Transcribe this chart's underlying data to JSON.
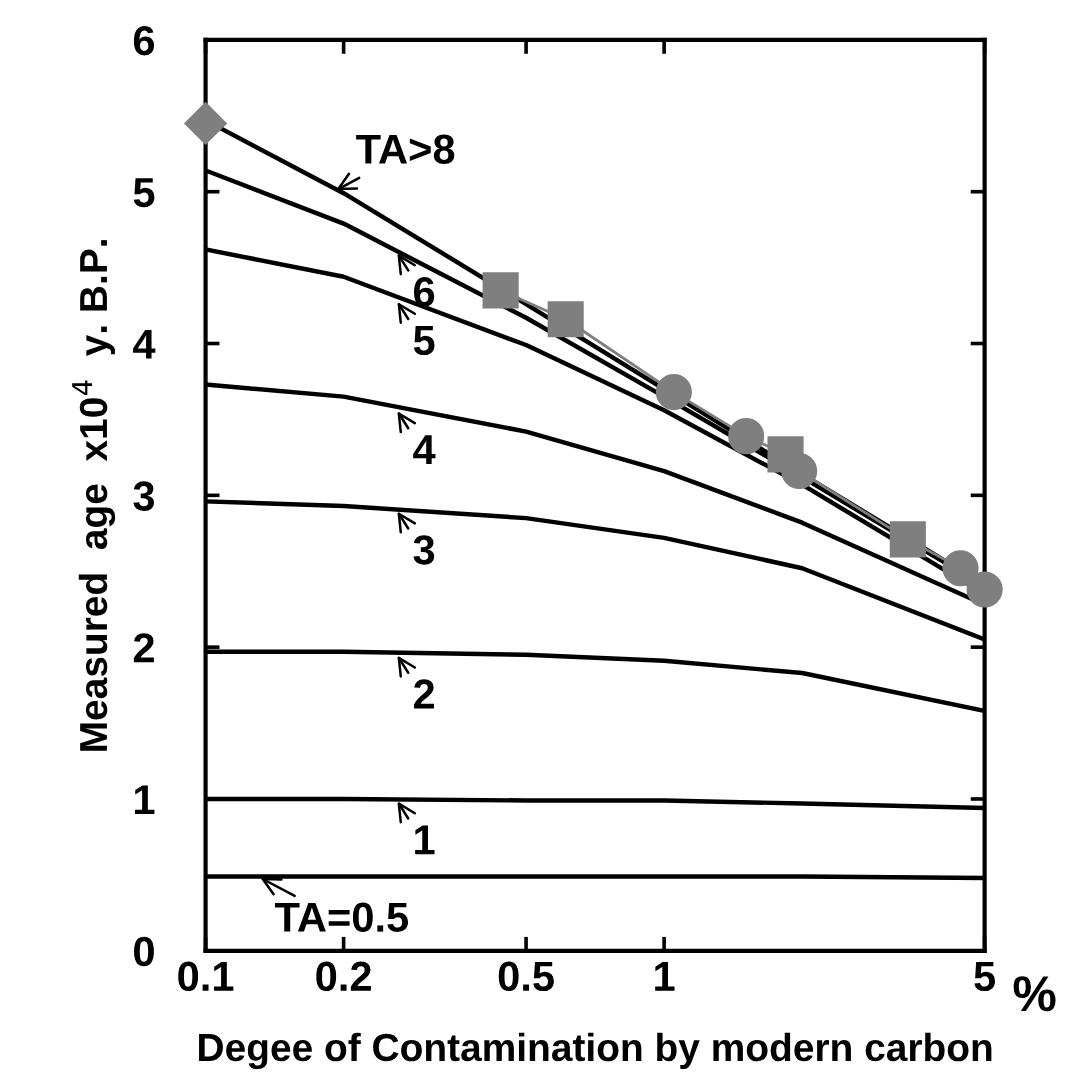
{
  "chart_data": {
    "type": "line",
    "xlabel": "Degee of Contamination by modern carbon",
    "ylabel": "Measured  age  x10$^{4}$  y. B.P.",
    "log": "x",
    "xlim": [
      0.1,
      5
    ],
    "xticks": [
      0.1,
      0.2,
      0.5,
      1,
      5
    ],
    "ylim": [
      0,
      6
    ],
    "yticks": [
      0,
      1,
      2,
      3,
      4,
      5,
      6
    ],
    "grid": false,
    "legend": false,
    "x": [
      0.1,
      0.2,
      0.5,
      1,
      2,
      5
    ],
    "series": [
      {
        "color": "#000000",
        "marker": "none",
        "values": [
          5.47,
          4.99,
          4.26,
          3.7,
          3.14,
          2.41
        ]
      },
      {
        "color": "#000000",
        "marker": "none",
        "values": [
          5.14,
          4.79,
          4.17,
          3.65,
          3.12,
          2.4
        ]
      },
      {
        "color": "#000000",
        "marker": "none",
        "values": [
          4.62,
          4.44,
          3.99,
          3.56,
          3.07,
          2.35
        ]
      },
      {
        "color": "#000000",
        "marker": "none",
        "values": [
          3.73,
          3.65,
          3.42,
          3.16,
          2.82,
          2.28
        ]
      },
      {
        "color": "#000000",
        "marker": "none",
        "values": [
          2.96,
          2.93,
          2.85,
          2.72,
          2.52,
          2.05
        ]
      },
      {
        "color": "#000000",
        "marker": "none",
        "values": [
          1.97,
          1.97,
          1.95,
          1.91,
          1.83,
          1.58
        ]
      },
      {
        "color": "#000000",
        "marker": "none",
        "values": [
          1.0,
          1.0,
          0.99,
          0.99,
          0.97,
          0.94
        ]
      },
      {
        "color": "#000000",
        "marker": "none",
        "values": [
          0.49,
          0.49,
          0.49,
          0.49,
          0.49,
          0.48
        ]
      },
      {
        "color": "#7f7f7f",
        "marker": "none",
        "x": [
          0.44,
          0.61,
          1.05,
          1.51,
          1.84,
          1.97,
          3.4,
          4.43,
          5.0
        ],
        "values": [
          4.35,
          4.16,
          3.68,
          3.39,
          3.27,
          3.16,
          2.71,
          2.52,
          2.38
        ]
      },
      {
        "type": "scatter",
        "color": "#7f7f7f",
        "marker": "diamond",
        "x": [
          0.1
        ],
        "values": [
          5.45
        ]
      },
      {
        "type": "scatter",
        "color": "#7f7f7f",
        "marker": "square",
        "x": [
          0.44,
          0.61,
          1.84,
          3.4
        ],
        "values": [
          4.35,
          4.16,
          3.27,
          2.71
        ]
      },
      {
        "type": "scatter",
        "color": "#7f7f7f",
        "marker": "circle",
        "x": [
          1.05,
          1.51,
          1.97,
          4.43,
          5.0
        ],
        "values": [
          3.68,
          3.39,
          3.16,
          2.52,
          2.38
        ]
      }
    ],
    "annotations": [
      {
        "text": "TA>8",
        "x": 0.19,
        "y": 5.0
      },
      {
        "text": "6",
        "x": 0.26,
        "y": 4.61
      },
      {
        "text": "5",
        "x": 0.26,
        "y": 4.29
      },
      {
        "text": "4",
        "x": 0.26,
        "y": 3.57
      },
      {
        "text": "3",
        "x": 0.26,
        "y": 2.91
      },
      {
        "text": "2",
        "x": 0.26,
        "y": 1.96
      },
      {
        "text": "1",
        "x": 0.26,
        "y": 1.0
      },
      {
        "text": "TA=0.5",
        "x": 0.13,
        "y": 0.49
      },
      "%"
    ]
  }
}
